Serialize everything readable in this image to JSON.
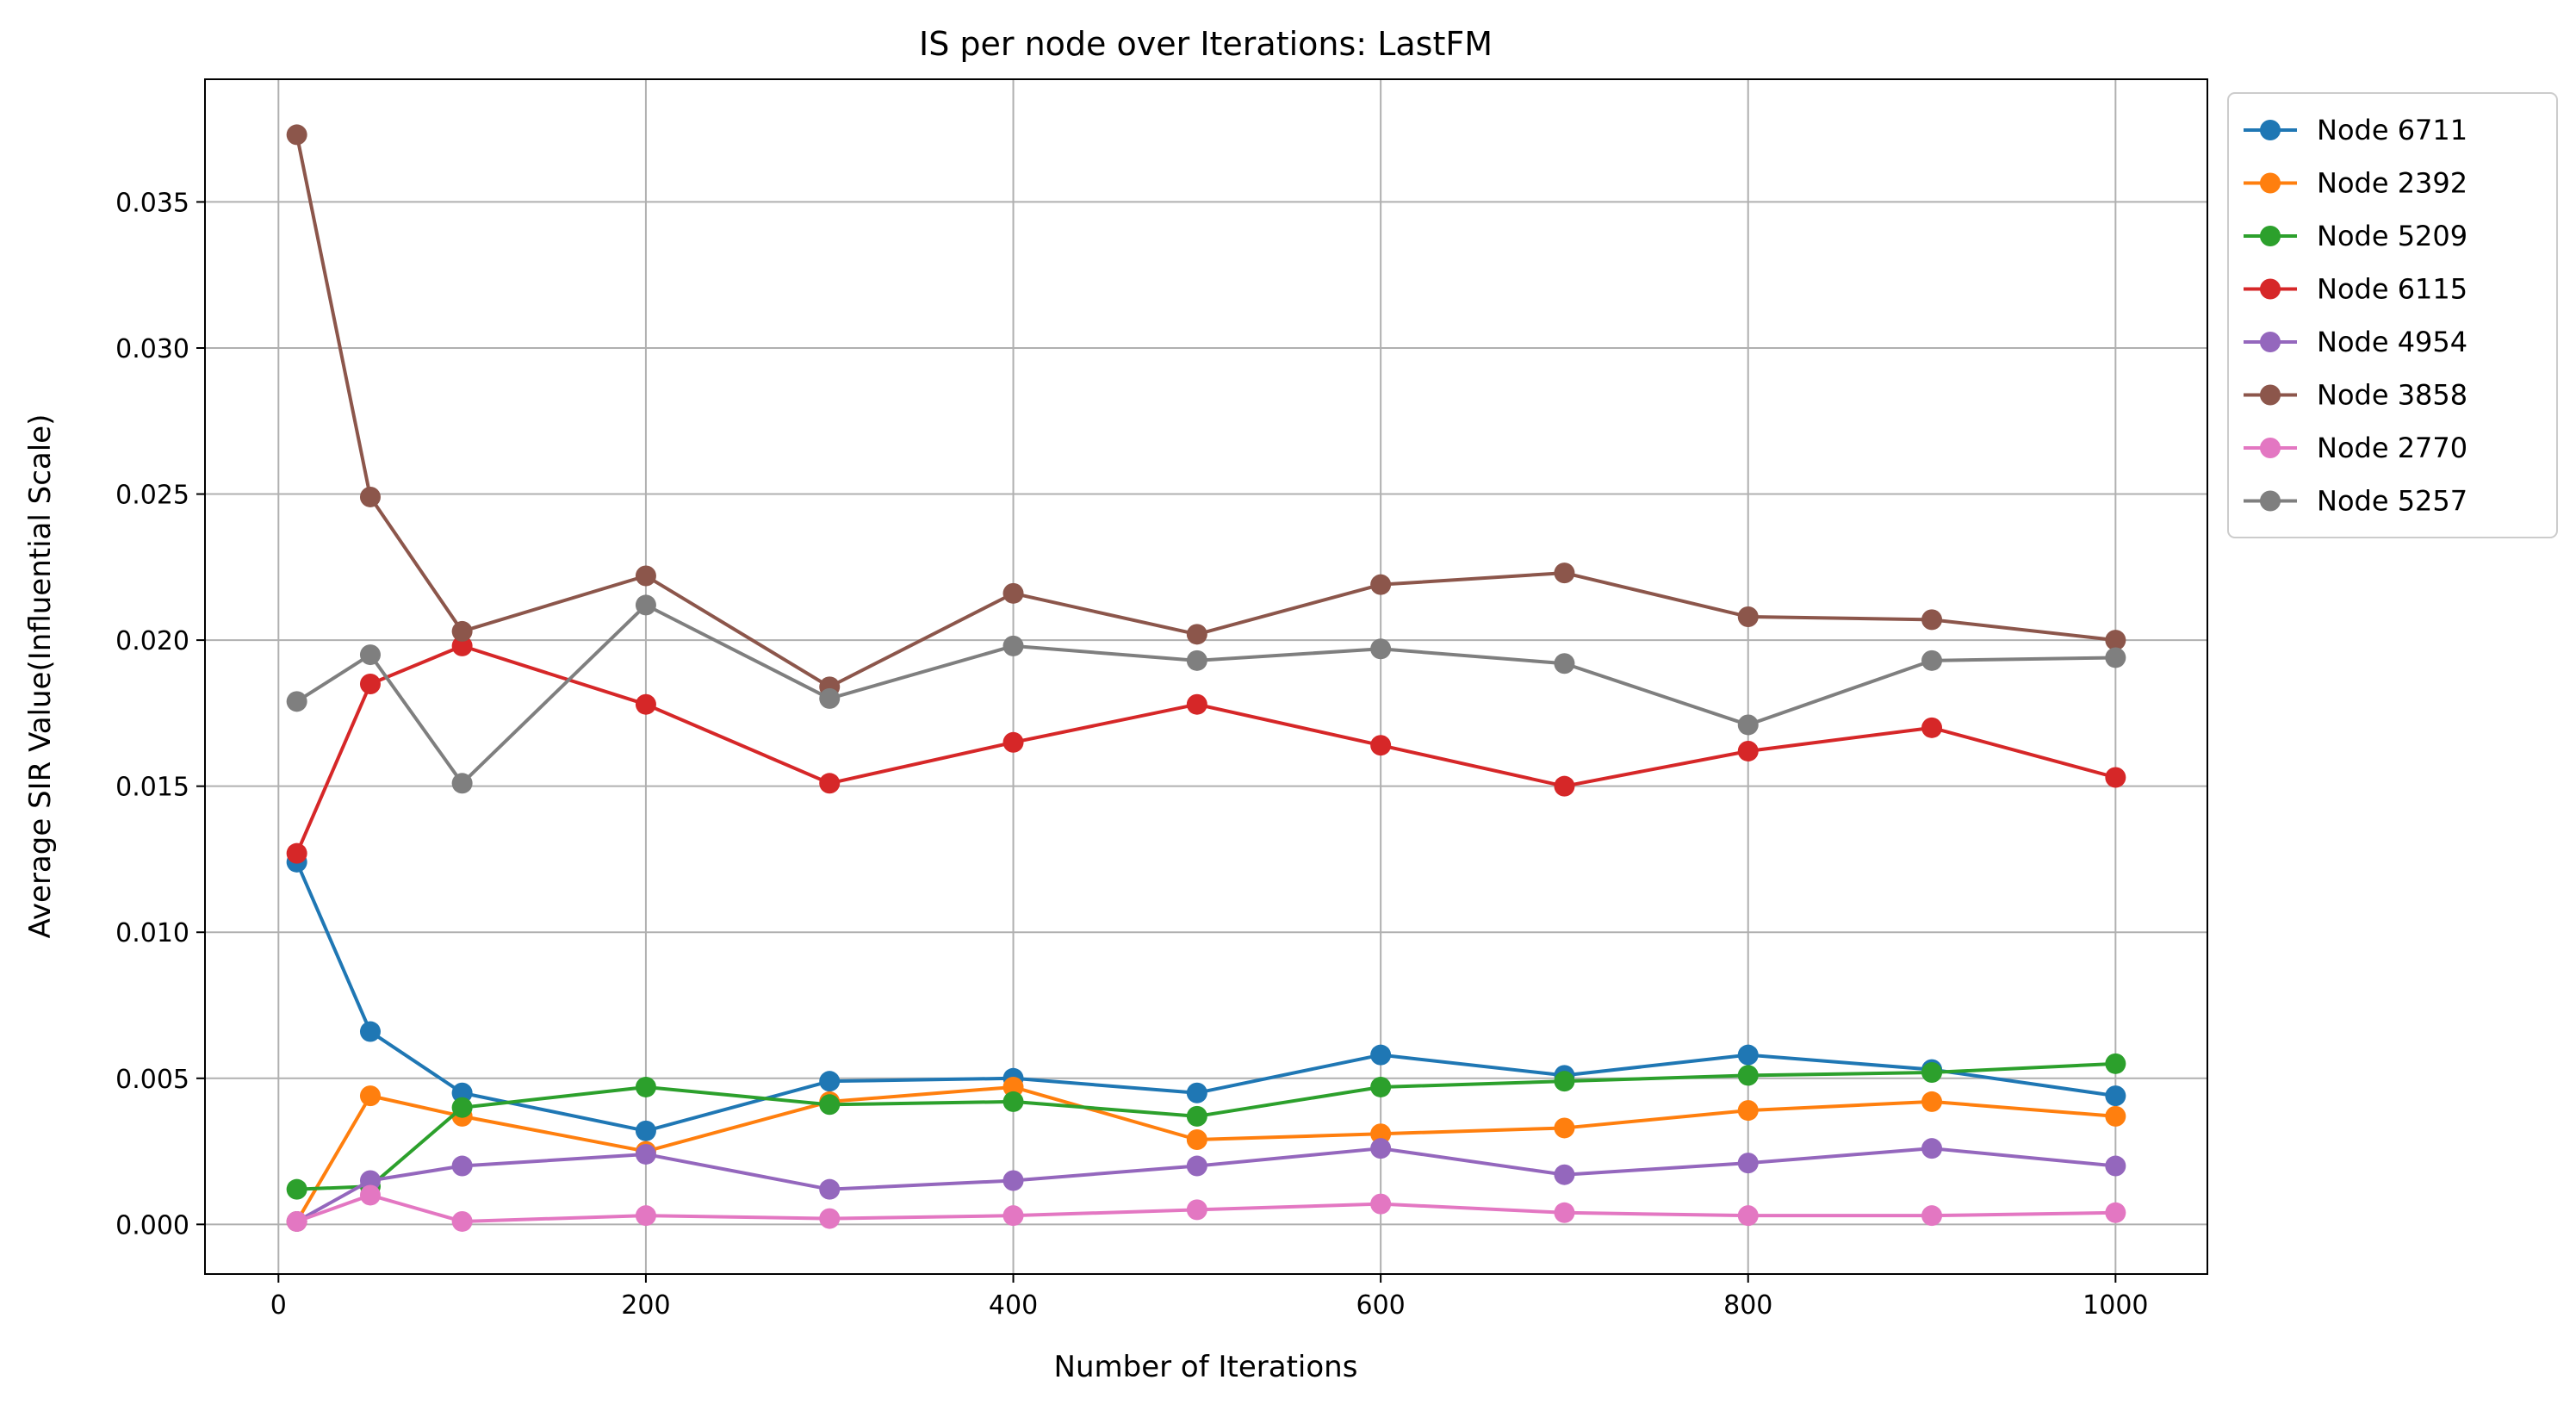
{
  "chart_data": {
    "type": "line",
    "title": "IS per node over Iterations: LastFM",
    "xlabel": "Number of Iterations",
    "ylabel": "Average SIR Value(Influential Scale)",
    "xlim": [
      -40,
      1050
    ],
    "ylim": [
      -0.0017,
      0.0392
    ],
    "xticks": [
      0,
      200,
      400,
      600,
      800,
      1000
    ],
    "yticks": [
      0.0,
      0.005,
      0.01,
      0.015,
      0.02,
      0.025,
      0.03,
      0.035
    ],
    "ytick_labels": [
      "0.000",
      "0.005",
      "0.010",
      "0.015",
      "0.020",
      "0.025",
      "0.030",
      "0.035"
    ],
    "grid": true,
    "legend_position": "outside-top-right",
    "x": [
      10,
      50,
      100,
      200,
      300,
      400,
      500,
      600,
      700,
      800,
      900,
      1000
    ],
    "series": [
      {
        "name": "Node 6711",
        "color": "#1f77b4",
        "values": [
          0.0124,
          0.0066,
          0.0045,
          0.0032,
          0.0049,
          0.005,
          0.0045,
          0.0058,
          0.0051,
          0.0058,
          0.0053,
          0.0044
        ]
      },
      {
        "name": "Node 2392",
        "color": "#ff7f0e",
        "values": [
          0.0001,
          0.0044,
          0.0037,
          0.0025,
          0.0042,
          0.0047,
          0.0029,
          0.0031,
          0.0033,
          0.0039,
          0.0042,
          0.0037
        ]
      },
      {
        "name": "Node 5209",
        "color": "#2ca02c",
        "values": [
          0.0012,
          0.0013,
          0.004,
          0.0047,
          0.0041,
          0.0042,
          0.0037,
          0.0047,
          0.0049,
          0.0051,
          0.0052,
          0.0055
        ]
      },
      {
        "name": "Node 6115",
        "color": "#d62728",
        "values": [
          0.0127,
          0.0185,
          0.0198,
          0.0178,
          0.0151,
          0.0165,
          0.0178,
          0.0164,
          0.015,
          0.0162,
          0.017,
          0.0153
        ]
      },
      {
        "name": "Node 4954",
        "color": "#9467bd",
        "values": [
          0.0001,
          0.0015,
          0.002,
          0.0024,
          0.0012,
          0.0015,
          0.002,
          0.0026,
          0.0017,
          0.0021,
          0.0026,
          0.002
        ]
      },
      {
        "name": "Node 3858",
        "color": "#8c564b",
        "values": [
          0.0373,
          0.0249,
          0.0203,
          0.0222,
          0.0184,
          0.0216,
          0.0202,
          0.0219,
          0.0223,
          0.0208,
          0.0207,
          0.02
        ]
      },
      {
        "name": "Node 2770",
        "color": "#e377c2",
        "values": [
          0.0001,
          0.001,
          0.0001,
          0.0003,
          0.0002,
          0.0003,
          0.0005,
          0.0007,
          0.0004,
          0.0003,
          0.0003,
          0.0004
        ]
      },
      {
        "name": "Node 5257",
        "color": "#7f7f7f",
        "values": [
          0.0179,
          0.0195,
          0.0151,
          0.0212,
          0.018,
          0.0198,
          0.0193,
          0.0197,
          0.0192,
          0.0171,
          0.0193,
          0.0194
        ]
      }
    ]
  }
}
